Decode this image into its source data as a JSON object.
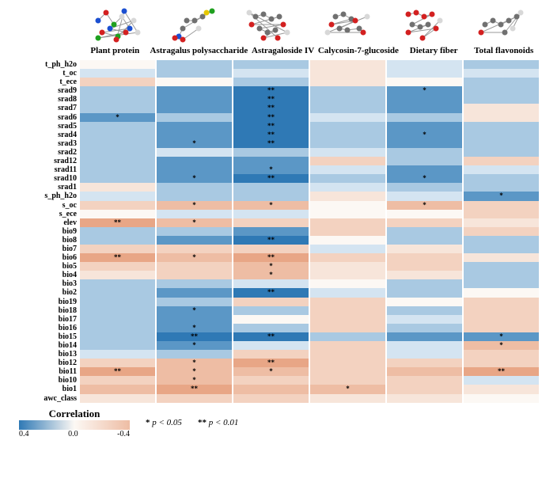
{
  "columns": [
    "Plant protein",
    "Astragalus polysaccharide",
    "Astragaloside IV",
    "Calycosin-7-glucoside",
    "Dietary fiber",
    "Total flavonoids"
  ],
  "rows": [
    "t_ph_h2o",
    "t_oc",
    "t_ece",
    "srad9",
    "srad8",
    "srad7",
    "srad6",
    "srad5",
    "srad4",
    "srad3",
    "srad2",
    "srad12",
    "srad11",
    "srad10",
    "srad1",
    "s_ph_h2o",
    "s_oc",
    "s_ece",
    "elev",
    "bio9",
    "bio8",
    "bio7",
    "bio6",
    "bio5",
    "bio4",
    "bio3",
    "bio2",
    "bio19",
    "bio18",
    "bio17",
    "bio16",
    "bio15",
    "bio14",
    "bio13",
    "bio12",
    "bio11",
    "bio10",
    "bio1",
    "awc_class"
  ],
  "palette": {
    "pos_hi": "#2f79b5",
    "pos_md": "#5b97c6",
    "pos_lo": "#a9c9e2",
    "pos_vl": "#d4e4f1",
    "neu": "#fcf8f4",
    "neg_vl": "#f7e5da",
    "neg_lo": "#f3d2c0",
    "neg_md": "#eebda4",
    "neg_hi": "#e8a686"
  },
  "cells": [
    [
      {
        "v": 0.02
      },
      {
        "v": 0.12
      },
      {
        "v": 0.1
      },
      {
        "v": -0.05
      },
      {
        "v": 0.08
      },
      {
        "v": 0.1
      }
    ],
    [
      {
        "v": 0.08
      },
      {
        "v": 0.1
      },
      {
        "v": 0.06
      },
      {
        "v": -0.04
      },
      {
        "v": 0.05
      },
      {
        "v": 0.08
      }
    ],
    [
      {
        "v": -0.1
      },
      {
        "v": 0.02
      },
      {
        "v": 0.12
      },
      {
        "v": -0.06
      },
      {
        "v": 0.02
      },
      {
        "v": 0.2
      }
    ],
    [
      {
        "v": 0.18
      },
      {
        "v": 0.25
      },
      {
        "v": 0.42,
        "s": "**"
      },
      {
        "v": 0.12
      },
      {
        "v": 0.3,
        "s": "*"
      },
      {
        "v": 0.18
      }
    ],
    [
      {
        "v": 0.2
      },
      {
        "v": 0.28
      },
      {
        "v": 0.42,
        "s": "**"
      },
      {
        "v": 0.1
      },
      {
        "v": 0.25
      },
      {
        "v": 0.15
      }
    ],
    [
      {
        "v": 0.2
      },
      {
        "v": 0.3
      },
      {
        "v": 0.42,
        "s": "**"
      },
      {
        "v": 0.1
      },
      {
        "v": 0.25
      },
      {
        "v": -0.08
      }
    ],
    [
      {
        "v": 0.32,
        "s": "*"
      },
      {
        "v": 0.15
      },
      {
        "v": 0.42,
        "s": "**"
      },
      {
        "v": 0.08
      },
      {
        "v": 0.2
      },
      {
        "v": -0.08
      }
    ],
    [
      {
        "v": 0.18
      },
      {
        "v": 0.28
      },
      {
        "v": 0.42,
        "s": "**"
      },
      {
        "v": 0.1
      },
      {
        "v": 0.28
      },
      {
        "v": 0.15
      }
    ],
    [
      {
        "v": 0.18
      },
      {
        "v": 0.25
      },
      {
        "v": 0.42,
        "s": "**"
      },
      {
        "v": 0.12
      },
      {
        "v": 0.32,
        "s": "*"
      },
      {
        "v": 0.18
      }
    ],
    [
      {
        "v": 0.15
      },
      {
        "v": 0.3,
        "s": "*"
      },
      {
        "v": 0.42,
        "s": "**"
      },
      {
        "v": 0.12
      },
      {
        "v": 0.28
      },
      {
        "v": 0.15
      }
    ],
    [
      {
        "v": 0.1
      },
      {
        "v": 0.06
      },
      {
        "v": 0.1
      },
      {
        "v": 0.08
      },
      {
        "v": 0.12
      },
      {
        "v": 0.15
      }
    ],
    [
      {
        "v": 0.18
      },
      {
        "v": 0.25
      },
      {
        "v": 0.22
      },
      {
        "v": -0.1
      },
      {
        "v": 0.1
      },
      {
        "v": -0.12
      }
    ],
    [
      {
        "v": 0.18
      },
      {
        "v": 0.28
      },
      {
        "v": 0.3,
        "s": "*"
      },
      {
        "v": 0.05
      },
      {
        "v": 0.22
      },
      {
        "v": 0.05
      }
    ],
    [
      {
        "v": 0.12
      },
      {
        "v": 0.32,
        "s": "*"
      },
      {
        "v": 0.42,
        "s": "**"
      },
      {
        "v": 0.1
      },
      {
        "v": 0.32,
        "s": "*"
      },
      {
        "v": 0.12
      }
    ],
    [
      {
        "v": -0.05
      },
      {
        "v": 0.1
      },
      {
        "v": 0.12
      },
      {
        "v": 0.06
      },
      {
        "v": 0.12
      },
      {
        "v": 0.15
      }
    ],
    [
      {
        "v": 0.05
      },
      {
        "v": 0.15
      },
      {
        "v": 0.15
      },
      {
        "v": -0.08
      },
      {
        "v": 0.08
      },
      {
        "v": 0.3,
        "s": "*"
      }
    ],
    [
      {
        "v": -0.18
      },
      {
        "v": -0.28,
        "s": "*"
      },
      {
        "v": -0.28,
        "s": "*"
      },
      {
        "v": -0.02
      },
      {
        "v": -0.28,
        "s": "*"
      },
      {
        "v": -0.15
      }
    ],
    [
      {
        "v": 0.02
      },
      {
        "v": 0.04
      },
      {
        "v": 0.04
      },
      {
        "v": 0.02
      },
      {
        "v": 0.02
      },
      {
        "v": -0.1
      }
    ],
    [
      {
        "v": -0.35,
        "s": "**"
      },
      {
        "v": -0.28,
        "s": "*"
      },
      {
        "v": -0.15
      },
      {
        "v": -0.1
      },
      {
        "v": -0.15
      },
      {
        "v": -0.05
      }
    ],
    [
      {
        "v": 0.12
      },
      {
        "v": 0.2
      },
      {
        "v": 0.22
      },
      {
        "v": -0.15
      },
      {
        "v": 0.1
      },
      {
        "v": -0.1
      }
    ],
    [
      {
        "v": 0.18
      },
      {
        "v": 0.25
      },
      {
        "v": 0.38,
        "s": "**"
      },
      {
        "v": 0.02
      },
      {
        "v": 0.2
      },
      {
        "v": 0.15
      }
    ],
    [
      {
        "v": -0.1
      },
      {
        "v": -0.15
      },
      {
        "v": -0.12
      },
      {
        "v": 0.05
      },
      {
        "v": -0.08
      },
      {
        "v": 0.15
      }
    ],
    [
      {
        "v": -0.35,
        "s": "**"
      },
      {
        "v": -0.28,
        "s": "*"
      },
      {
        "v": -0.35,
        "s": "**"
      },
      {
        "v": -0.1
      },
      {
        "v": -0.2
      },
      {
        "v": -0.08
      }
    ],
    [
      {
        "v": -0.12
      },
      {
        "v": -0.18
      },
      {
        "v": -0.28,
        "s": "*"
      },
      {
        "v": -0.08
      },
      {
        "v": -0.12
      },
      {
        "v": 0.12
      }
    ],
    [
      {
        "v": -0.08
      },
      {
        "v": -0.1
      },
      {
        "v": -0.28,
        "s": "*"
      },
      {
        "v": -0.04
      },
      {
        "v": -0.08
      },
      {
        "v": 0.12
      }
    ],
    [
      {
        "v": 0.15
      },
      {
        "v": 0.15
      },
      {
        "v": 0.08
      },
      {
        "v": 0.02
      },
      {
        "v": 0.1
      },
      {
        "v": 0.12
      }
    ],
    [
      {
        "v": 0.15
      },
      {
        "v": 0.22
      },
      {
        "v": 0.42,
        "s": "**"
      },
      {
        "v": 0.08
      },
      {
        "v": 0.2
      },
      {
        "v": -0.02
      }
    ],
    [
      {
        "v": 0.1
      },
      {
        "v": 0.18
      },
      {
        "v": -0.1
      },
      {
        "v": -0.18
      },
      {
        "v": 0.02
      },
      {
        "v": -0.18
      }
    ],
    [
      {
        "v": 0.1
      },
      {
        "v": 0.28,
        "s": "*"
      },
      {
        "v": 0.1
      },
      {
        "v": -0.1
      },
      {
        "v": 0.1
      },
      {
        "v": -0.12
      }
    ],
    [
      {
        "v": 0.18
      },
      {
        "v": 0.25
      },
      {
        "v": 0.02
      },
      {
        "v": -0.15
      },
      {
        "v": 0.08
      },
      {
        "v": -0.18
      }
    ],
    [
      {
        "v": 0.12
      },
      {
        "v": 0.3,
        "s": "*"
      },
      {
        "v": 0.12
      },
      {
        "v": -0.12
      },
      {
        "v": 0.1
      },
      {
        "v": -0.15
      }
    ],
    [
      {
        "v": 0.18
      },
      {
        "v": 0.38,
        "s": "**"
      },
      {
        "v": 0.38,
        "s": "**"
      },
      {
        "v": 0.1
      },
      {
        "v": 0.25
      },
      {
        "v": 0.3,
        "s": "*"
      }
    ],
    [
      {
        "v": 0.15
      },
      {
        "v": 0.3,
        "s": "*"
      },
      {
        "v": 0.04
      },
      {
        "v": -0.12
      },
      {
        "v": 0.06
      },
      {
        "v": -0.3,
        "s": "*"
      }
    ],
    [
      {
        "v": 0.08
      },
      {
        "v": 0.2
      },
      {
        "v": -0.1
      },
      {
        "v": -0.15
      },
      {
        "v": 0.04
      },
      {
        "v": -0.15
      }
    ],
    [
      {
        "v": -0.2
      },
      {
        "v": -0.28,
        "s": "*"
      },
      {
        "v": -0.35,
        "s": "**"
      },
      {
        "v": -0.1
      },
      {
        "v": -0.2
      },
      {
        "v": -0.1
      }
    ],
    [
      {
        "v": -0.35,
        "s": "**"
      },
      {
        "v": -0.28,
        "s": "*"
      },
      {
        "v": -0.3,
        "s": "*"
      },
      {
        "v": -0.12
      },
      {
        "v": -0.22
      },
      {
        "v": -0.35,
        "s": "**"
      }
    ],
    [
      {
        "v": -0.18
      },
      {
        "v": -0.28,
        "s": "*"
      },
      {
        "v": -0.2
      },
      {
        "v": -0.1
      },
      {
        "v": -0.15
      },
      {
        "v": 0.04
      }
    ],
    [
      {
        "v": -0.22
      },
      {
        "v": -0.35,
        "s": "**"
      },
      {
        "v": -0.25
      },
      {
        "v": -0.3,
        "s": "*"
      },
      {
        "v": -0.18
      },
      {
        "v": -0.04
      }
    ],
    [
      {
        "v": -0.04
      },
      {
        "v": -0.12
      },
      {
        "v": -0.15
      },
      {
        "v": -0.06
      },
      {
        "v": -0.08
      },
      {
        "v": -0.02
      }
    ]
  ],
  "legend": {
    "title": "Correlation",
    "ticks": [
      "0.4",
      "0.0",
      "-0.4"
    ],
    "p05": "* p < 0.05",
    "p01": "** p < 0.01",
    "grad_left": "#2f79b5",
    "grad_mid": "#fcf8f4",
    "grad_right": "#eebda4"
  },
  "molecules": [
    {
      "name": "plant-protein",
      "atoms": [
        [
          "#1b4fd1",
          15,
          20
        ],
        [
          "#d32020",
          25,
          10
        ],
        [
          "#1fa01f",
          35,
          25
        ],
        [
          "#d8d8d8",
          45,
          15
        ],
        [
          "#1b4fd1",
          55,
          30
        ],
        [
          "#d32020",
          20,
          35
        ],
        [
          "#1fa01f",
          40,
          40
        ],
        [
          "#d8d8d8",
          60,
          20
        ],
        [
          "#1b4fd1",
          30,
          30
        ],
        [
          "#d32020",
          50,
          35
        ],
        [
          "#1fa01f",
          15,
          42
        ],
        [
          "#d8d8d8",
          65,
          35
        ],
        [
          "#1b4fd1",
          48,
          8
        ],
        [
          "#d32020",
          38,
          44
        ]
      ]
    },
    {
      "name": "astragalus-poly",
      "atoms": [
        [
          "#707070",
          30,
          20
        ],
        [
          "#707070",
          40,
          20
        ],
        [
          "#707070",
          50,
          15
        ],
        [
          "#e6c800",
          55,
          10
        ],
        [
          "#1fa01f",
          62,
          8
        ],
        [
          "#707070",
          25,
          30
        ],
        [
          "#1b4fd1",
          20,
          40
        ],
        [
          "#d32020",
          15,
          42
        ],
        [
          "#d32020",
          25,
          44
        ],
        [
          "#d8d8d8",
          45,
          30
        ]
      ]
    },
    {
      "name": "astragaloside",
      "atoms": [
        [
          "#707070",
          20,
          15
        ],
        [
          "#707070",
          30,
          12
        ],
        [
          "#707070",
          40,
          18
        ],
        [
          "#707070",
          50,
          15
        ],
        [
          "#d32020",
          15,
          25
        ],
        [
          "#d32020",
          55,
          25
        ],
        [
          "#707070",
          25,
          30
        ],
        [
          "#707070",
          35,
          35
        ],
        [
          "#707070",
          45,
          32
        ],
        [
          "#d32020",
          30,
          42
        ],
        [
          "#d8d8d8",
          60,
          35
        ],
        [
          "#d8d8d8",
          12,
          10
        ],
        [
          "#d32020",
          48,
          42
        ]
      ]
    },
    {
      "name": "calycosin",
      "atoms": [
        [
          "#707070",
          25,
          15
        ],
        [
          "#707070",
          35,
          12
        ],
        [
          "#707070",
          45,
          18
        ],
        [
          "#d32020",
          20,
          25
        ],
        [
          "#d32020",
          50,
          20
        ],
        [
          "#707070",
          30,
          30
        ],
        [
          "#707070",
          40,
          32
        ],
        [
          "#707070",
          55,
          30
        ],
        [
          "#d32020",
          60,
          35
        ],
        [
          "#d8d8d8",
          15,
          35
        ],
        [
          "#d8d8d8",
          65,
          15
        ]
      ]
    },
    {
      "name": "dietary-fiber",
      "atoms": [
        [
          "#d32020",
          20,
          12
        ],
        [
          "#d32020",
          30,
          10
        ],
        [
          "#d32020",
          40,
          15
        ],
        [
          "#d32020",
          50,
          12
        ],
        [
          "#707070",
          25,
          25
        ],
        [
          "#707070",
          35,
          28
        ],
        [
          "#707070",
          45,
          25
        ],
        [
          "#d32020",
          20,
          35
        ],
        [
          "#d32020",
          55,
          30
        ],
        [
          "#d32020",
          38,
          42
        ],
        [
          "#d8d8d8",
          60,
          20
        ]
      ]
    },
    {
      "name": "flavonoids",
      "atoms": [
        [
          "#707070",
          20,
          25
        ],
        [
          "#707070",
          30,
          20
        ],
        [
          "#707070",
          40,
          25
        ],
        [
          "#707070",
          50,
          20
        ],
        [
          "#707070",
          60,
          15
        ],
        [
          "#d32020",
          15,
          35
        ],
        [
          "#707070",
          45,
          35
        ],
        [
          "#d8d8d8",
          65,
          10
        ],
        [
          "#d8d8d8",
          55,
          30
        ]
      ]
    }
  ]
}
